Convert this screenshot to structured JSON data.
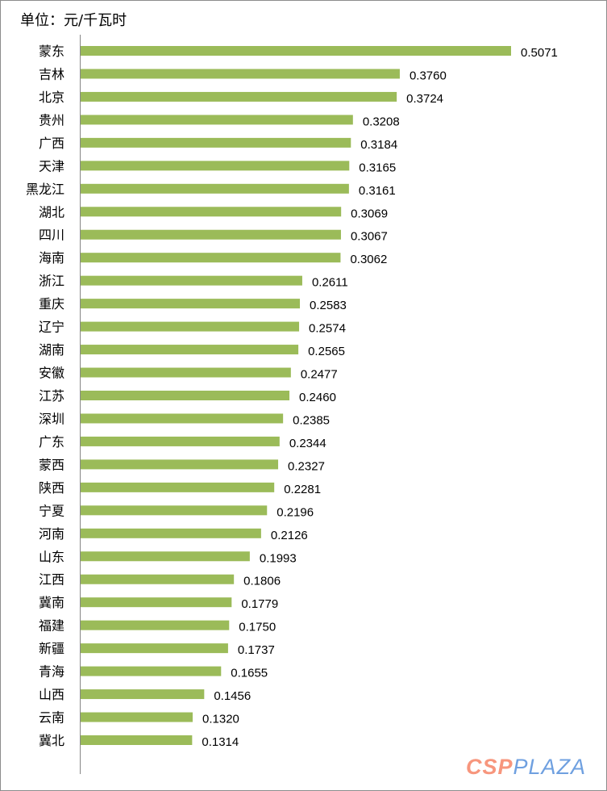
{
  "chart_data": {
    "type": "bar",
    "orientation": "horizontal",
    "unit_label": "单位：元/千瓦时",
    "categories": [
      "蒙东",
      "吉林",
      "北京",
      "贵州",
      "广西",
      "天津",
      "黑龙江",
      "湖北",
      "四川",
      "海南",
      "浙江",
      "重庆",
      "辽宁",
      "湖南",
      "安徽",
      "江苏",
      "深圳",
      "广东",
      "蒙西",
      "陕西",
      "宁夏",
      "河南",
      "山东",
      "江西",
      "冀南",
      "福建",
      "新疆",
      "青海",
      "山西",
      "云南",
      "冀北"
    ],
    "values": [
      0.5071,
      0.376,
      0.3724,
      0.3208,
      0.3184,
      0.3165,
      0.3161,
      0.3069,
      0.3067,
      0.3062,
      0.2611,
      0.2583,
      0.2574,
      0.2565,
      0.2477,
      0.246,
      0.2385,
      0.2344,
      0.2327,
      0.2281,
      0.2196,
      0.2126,
      0.1993,
      0.1806,
      0.1779,
      0.175,
      0.1737,
      0.1655,
      0.1456,
      0.132,
      0.1314
    ],
    "value_labels": [
      "0.5071",
      "0.3760",
      "0.3724",
      "0.3208",
      "0.3184",
      "0.3165",
      "0.3161",
      "0.3069",
      "0.3067",
      "0.3062",
      "0.2611",
      "0.2583",
      "0.2574",
      "0.2565",
      "0.2477",
      "0.2460",
      "0.2385",
      "0.2344",
      "0.2327",
      "0.2281",
      "0.2196",
      "0.2126",
      "0.1993",
      "0.1806",
      "0.1779",
      "0.1750",
      "0.1737",
      "0.1655",
      "0.1456",
      "0.1320",
      "0.1314"
    ],
    "xlim": [
      0,
      0.5071
    ],
    "grid": false,
    "bar_color": "#9bbb59"
  },
  "watermark": {
    "part1": "CSP",
    "part2": "PLAZA"
  }
}
